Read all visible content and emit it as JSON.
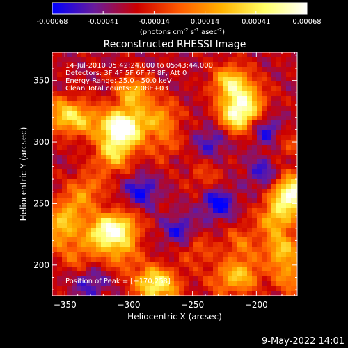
{
  "colorbar": {
    "ticks": [
      "-0.00068",
      "-0.00041",
      "-0.00014",
      "0.00014",
      "0.00041",
      "0.00068"
    ],
    "units_prefix": "(photons cm",
    "units_exp1": "-2",
    "units_mid1": " s",
    "units_exp2": "-1",
    "units_mid2": " asec",
    "units_exp3": "-2",
    "units_suffix": ")",
    "colors": [
      "#0000ff",
      "#6a1b9a",
      "#cc0000",
      "#ff5a00",
      "#ffb300",
      "#ffff66",
      "#ffffff"
    ]
  },
  "footer": {
    "date": "9-May-2022 14:01"
  },
  "chart_data": {
    "type": "heatmap",
    "title": "Reconstructed RHESSI Image",
    "xlabel": "Heliocentric X (arcsec)",
    "ylabel": "Heliocentric Y (arcsec)",
    "xlim": [
      -360,
      -168
    ],
    "ylim": [
      175,
      373
    ],
    "x_ticks": [
      -350,
      -300,
      -250,
      -200
    ],
    "x_tick_labels": [
      "−350",
      "−300",
      "−250",
      "−200"
    ],
    "y_ticks": [
      200,
      250,
      300,
      350
    ],
    "y_tick_labels": [
      "200",
      "250",
      "300",
      "350"
    ],
    "annotations": [
      "14-Jul-2010 05:42:24.000 to 05:43:44.000",
      "Detectors: 3F 4F 5F 6F 7F 8F, Att 0",
      "Energy Range: 25.0 - 50.0 keV",
      "Clean    Total counts: 2.08E+03"
    ],
    "peak_label": "Position of Peak = [−170,258]",
    "peak": [
      -170,
      258
    ],
    "colorbar_range": [
      -0.00068,
      0.00068
    ],
    "hot_spots": [
      {
        "x": -352,
        "y": 322,
        "amp": 0.55
      },
      {
        "x": -335,
        "y": 318,
        "amp": 0.45
      },
      {
        "x": -308,
        "y": 312,
        "amp": 0.95
      },
      {
        "x": -312,
        "y": 290,
        "amp": 0.6
      },
      {
        "x": -296,
        "y": 340,
        "amp": 0.55
      },
      {
        "x": -296,
        "y": 310,
        "amp": 0.4
      },
      {
        "x": -275,
        "y": 320,
        "amp": 0.45
      },
      {
        "x": -268,
        "y": 293,
        "amp": 0.5
      },
      {
        "x": -220,
        "y": 348,
        "amp": 0.7
      },
      {
        "x": -215,
        "y": 322,
        "amp": 0.85
      },
      {
        "x": -205,
        "y": 335,
        "amp": 0.4
      },
      {
        "x": -332,
        "y": 262,
        "amp": 0.35
      },
      {
        "x": -345,
        "y": 245,
        "amp": 0.4
      },
      {
        "x": -355,
        "y": 228,
        "amp": 0.5
      },
      {
        "x": -340,
        "y": 208,
        "amp": 0.3
      },
      {
        "x": -320,
        "y": 226,
        "amp": 0.75
      },
      {
        "x": -305,
        "y": 230,
        "amp": 0.6
      },
      {
        "x": -305,
        "y": 208,
        "amp": 0.35
      },
      {
        "x": -282,
        "y": 185,
        "amp": 0.65
      },
      {
        "x": -270,
        "y": 182,
        "amp": 0.3
      },
      {
        "x": -247,
        "y": 212,
        "amp": 0.25
      },
      {
        "x": -225,
        "y": 188,
        "amp": 0.3
      },
      {
        "x": -210,
        "y": 192,
        "amp": 0.45
      },
      {
        "x": -212,
        "y": 218,
        "amp": 0.3
      },
      {
        "x": -185,
        "y": 238,
        "amp": 0.55
      },
      {
        "x": -172,
        "y": 258,
        "amp": 1.0
      },
      {
        "x": -180,
        "y": 212,
        "amp": 0.55
      },
      {
        "x": -173,
        "y": 190,
        "amp": 0.4
      },
      {
        "x": -178,
        "y": 300,
        "amp": 0.25
      },
      {
        "x": -240,
        "y": 272,
        "amp": 0.2
      }
    ],
    "cold_spots": [
      {
        "x": -230,
        "y": 250,
        "amp": 0.45
      },
      {
        "x": -260,
        "y": 228,
        "amp": 0.35
      },
      {
        "x": -265,
        "y": 290,
        "amp": 0.35
      },
      {
        "x": -190,
        "y": 308,
        "amp": 0.4
      },
      {
        "x": -235,
        "y": 300,
        "amp": 0.3
      },
      {
        "x": -290,
        "y": 260,
        "amp": 0.4
      },
      {
        "x": -195,
        "y": 275,
        "amp": 0.3
      },
      {
        "x": -330,
        "y": 185,
        "amp": 0.3
      }
    ]
  }
}
